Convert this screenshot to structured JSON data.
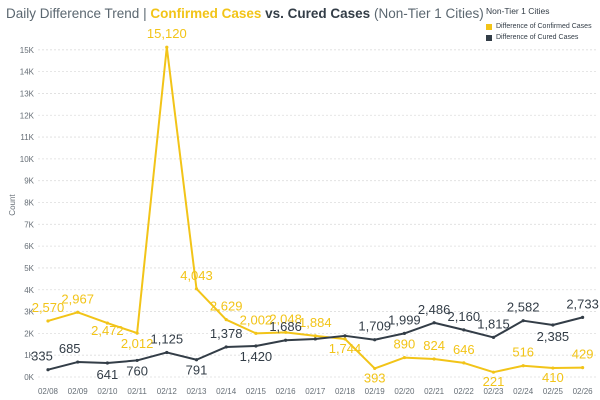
{
  "title": {
    "main": "Daily Difference Trend",
    "separator": " | ",
    "confirmed": "Confirmed Cases",
    "vs": " vs. ",
    "cured": "Cured Cases",
    "paren": " (Non-Tier 1 Cities)"
  },
  "legend": {
    "title": "Non-Tier 1 Cities",
    "items": [
      {
        "label": "Difference of Confirmed Cases",
        "color": "#f2c418"
      },
      {
        "label": "Difference of Cured Cases",
        "color": "#333d47"
      }
    ]
  },
  "chart_data": {
    "type": "line",
    "title": "Daily Difference Trend | Confirmed Cases vs. Cured Cases (Non-Tier 1 Cities)",
    "xlabel": "",
    "ylabel": "Count",
    "ylim": [
      0,
      16000
    ],
    "yticks": [
      0,
      1000,
      2000,
      3000,
      4000,
      5000,
      6000,
      7000,
      8000,
      9000,
      10000,
      11000,
      12000,
      13000,
      14000,
      15000
    ],
    "ytick_labels": [
      "0K",
      "1K",
      "2K",
      "3K",
      "4K",
      "5K",
      "6K",
      "7K",
      "8K",
      "9K",
      "10K",
      "11K",
      "12K",
      "13K",
      "14K",
      "15K"
    ],
    "grid": true,
    "categories": [
      "02/08",
      "02/09",
      "02/10",
      "02/11",
      "02/12",
      "02/13",
      "02/14",
      "02/15",
      "02/16",
      "02/17",
      "02/18",
      "02/19",
      "02/20",
      "02/21",
      "02/22",
      "02/23",
      "02/24",
      "02/25",
      "02/26"
    ],
    "series": [
      {
        "name": "Difference of Confirmed Cases",
        "color": "#f2c418",
        "values": [
          2570,
          2967,
          2472,
          2012,
          15120,
          4043,
          2629,
          2002,
          2048,
          1884,
          1744,
          393,
          890,
          824,
          646,
          221,
          516,
          410,
          429
        ],
        "labels": [
          "2,570",
          "2,967",
          "2,472",
          "2,012",
          "15,120",
          "4,043",
          "2,629",
          "2,002",
          "2,048",
          "1,884",
          "1,744",
          "393",
          "890",
          "824",
          "646",
          "221",
          "516",
          "410",
          "429"
        ]
      },
      {
        "name": "Difference of Cured Cases",
        "color": "#333d47",
        "values": [
          335,
          685,
          641,
          760,
          1125,
          791,
          1378,
          1420,
          1686,
          1744,
          1888,
          1709,
          1999,
          2486,
          2160,
          1815,
          2582,
          2385,
          2733
        ],
        "labels": [
          "335",
          "685",
          "641",
          "760",
          "1,125",
          "791",
          "1,378",
          "1,420",
          "1,686",
          "",
          "",
          "1,709",
          "1,999",
          "2,486",
          "2,160",
          "1,815",
          "2,582",
          "2,385",
          "2,733"
        ]
      }
    ]
  }
}
